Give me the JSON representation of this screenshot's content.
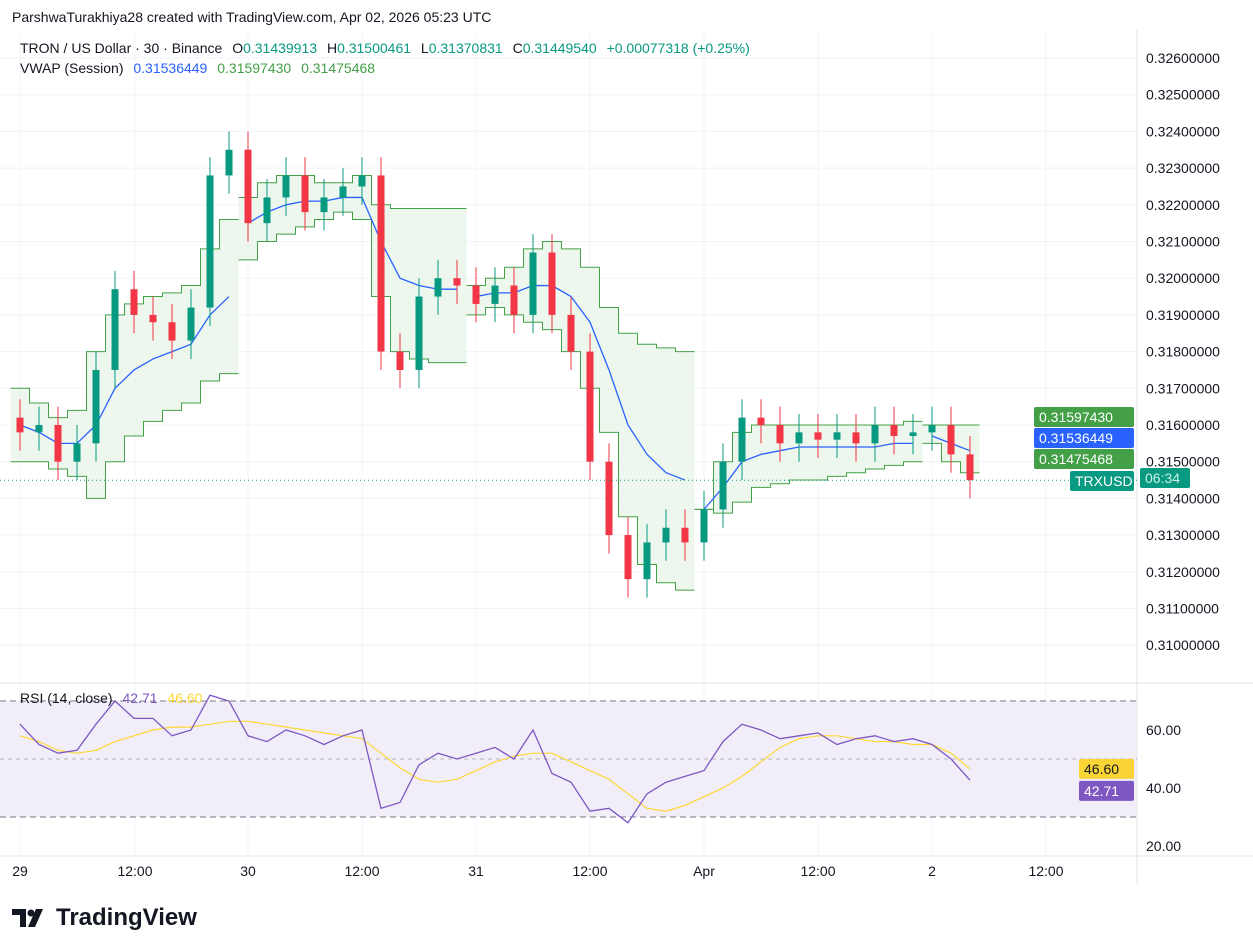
{
  "credit": "ParshwaTurakhiya28 created with TradingView.com, Apr 02, 2026 05:23 UTC",
  "legend": {
    "symbol": "TRON / US Dollar · 30 · Binance",
    "o_label": "O",
    "o": "0.31439913",
    "h_label": "H",
    "h": "0.31500461",
    "l_label": "L",
    "l": "0.31370831",
    "c_label": "C",
    "c": "0.31449540",
    "change": "+0.00077318 (+0.25%)"
  },
  "vwap_legend": {
    "label": "VWAP (Session)",
    "vwap": "0.31536449",
    "upper": "0.31597430",
    "lower": "0.31475468"
  },
  "rsi_legend": {
    "label": "RSI (14, close)",
    "rsi": "42.71",
    "ma": "46.60"
  },
  "badges": {
    "upper": "0.31597430",
    "vwap": "0.31536449",
    "lower": "0.31475468",
    "symbol": "TRXUSD",
    "countdown": "06:34",
    "rsi": "42.71",
    "rsi_ma": "46.60"
  },
  "logo": "TradingView",
  "colors": {
    "up": "#089981",
    "down": "#f23645",
    "vwap": "#2962ff",
    "band": "#43a047",
    "band_fill": "#e8f5e9",
    "rsi": "#7e57c2",
    "rsi_ma": "#fdd835",
    "rsi_bg": "#ede7f6"
  },
  "chart_data": [
    {
      "type": "candlestick",
      "title": "TRON / US Dollar · 30 · Binance",
      "y_ticks": [
        "0.32600000",
        "0.32500000",
        "0.32400000",
        "0.32300000",
        "0.32200000",
        "0.32100000",
        "0.32000000",
        "0.31900000",
        "0.31800000",
        "0.31700000",
        "0.31600000",
        "0.31500000",
        "0.31400000",
        "0.31300000",
        "0.31200000",
        "0.31100000",
        "0.31000000"
      ],
      "ylim": [
        0.3095,
        0.3263
      ],
      "x_ticks": [
        "29",
        "12:00",
        "30",
        "12:00",
        "31",
        "12:00",
        "Apr",
        "12:00",
        "2",
        "12:00"
      ],
      "hours_from_mar29": [
        0,
        2,
        4,
        6,
        8,
        10,
        12,
        14,
        16,
        18,
        20,
        22,
        24,
        26,
        28,
        30,
        32,
        34,
        36,
        38,
        40,
        42,
        44,
        46,
        48,
        50,
        52,
        54,
        56,
        58,
        60,
        62,
        64,
        66,
        68,
        70,
        72,
        74,
        76,
        78,
        80,
        82,
        84,
        86,
        88,
        90,
        92,
        94,
        96,
        98,
        100
      ],
      "close": [
        0.3158,
        0.316,
        0.315,
        0.3155,
        0.3175,
        0.3197,
        0.319,
        0.3188,
        0.3183,
        0.3192,
        0.3228,
        0.3235,
        0.3215,
        0.3222,
        0.3228,
        0.3218,
        0.3222,
        0.3225,
        0.3228,
        0.318,
        0.3175,
        0.3195,
        0.32,
        0.3198,
        0.3193,
        0.3198,
        0.319,
        0.3207,
        0.319,
        0.318,
        0.315,
        0.313,
        0.3118,
        0.3128,
        0.3132,
        0.3128,
        0.3137,
        0.315,
        0.3162,
        0.316,
        0.3155,
        0.3158,
        0.3156,
        0.3158,
        0.3155,
        0.316,
        0.3157,
        0.3158,
        0.316,
        0.3152,
        0.3145
      ],
      "vwap": [
        0.316,
        0.3158,
        0.3155,
        0.3155,
        0.316,
        0.317,
        0.3175,
        0.3178,
        0.318,
        0.3182,
        0.319,
        0.3195,
        0.3215,
        0.3218,
        0.322,
        0.3221,
        0.3221,
        0.3222,
        0.3222,
        0.321,
        0.32,
        0.3198,
        0.3197,
        0.3197,
        0.3195,
        0.3196,
        0.3196,
        0.3198,
        0.3198,
        0.3195,
        0.3188,
        0.3175,
        0.316,
        0.3152,
        0.3147,
        0.3145,
        0.3137,
        0.3143,
        0.315,
        0.3152,
        0.3153,
        0.3154,
        0.3154,
        0.3154,
        0.3154,
        0.3154,
        0.3155,
        0.3155,
        0.3157,
        0.3155,
        0.3153
      ],
      "vwap_upper": [
        0.317,
        0.3166,
        0.3162,
        0.3164,
        0.318,
        0.319,
        0.3193,
        0.3195,
        0.3196,
        0.3198,
        0.3208,
        0.3216,
        0.3222,
        0.3226,
        0.3228,
        0.3228,
        0.3226,
        0.3226,
        0.3228,
        0.322,
        0.3219,
        0.3219,
        0.3219,
        0.3219,
        0.3198,
        0.32,
        0.3203,
        0.3208,
        0.321,
        0.3208,
        0.3203,
        0.3192,
        0.3185,
        0.3182,
        0.3181,
        0.318,
        0.3137,
        0.315,
        0.3158,
        0.316,
        0.316,
        0.316,
        0.316,
        0.316,
        0.316,
        0.316,
        0.316,
        0.3161,
        0.316,
        0.316,
        0.316
      ],
      "vwap_lower": [
        0.315,
        0.315,
        0.3148,
        0.3146,
        0.314,
        0.315,
        0.3157,
        0.3161,
        0.3164,
        0.3166,
        0.3172,
        0.3174,
        0.3205,
        0.321,
        0.3212,
        0.3214,
        0.3216,
        0.3218,
        0.3216,
        0.3195,
        0.318,
        0.3178,
        0.3177,
        0.3177,
        0.319,
        0.3192,
        0.319,
        0.3188,
        0.3186,
        0.318,
        0.317,
        0.3158,
        0.3135,
        0.3122,
        0.3117,
        0.3115,
        0.3137,
        0.3136,
        0.3139,
        0.3143,
        0.3144,
        0.3145,
        0.3145,
        0.3146,
        0.3147,
        0.3148,
        0.3149,
        0.315,
        0.3155,
        0.315,
        0.3147
      ],
      "current_price": 0.3144954
    },
    {
      "type": "line",
      "title": "RSI (14, close)",
      "y_ticks": [
        "60.00",
        "40.00",
        "20.00"
      ],
      "ylim": [
        15,
        75
      ],
      "bands": [
        30,
        70
      ],
      "rsi": [
        62,
        55,
        52,
        53,
        62,
        70,
        64,
        64,
        58,
        60,
        72,
        70,
        58,
        56,
        60,
        58,
        55,
        58,
        60,
        33,
        35,
        48,
        52,
        50,
        52,
        54,
        50,
        60,
        45,
        42,
        32,
        33,
        28,
        38,
        42,
        44,
        46,
        56,
        62,
        60,
        57,
        58,
        59,
        55,
        57,
        58,
        56,
        57,
        55,
        50,
        42.71
      ],
      "rsi_ma": [
        58,
        56,
        53,
        52,
        53,
        56,
        58,
        60,
        61,
        61,
        62,
        63,
        63,
        62,
        61,
        60,
        59,
        58,
        57,
        52,
        47,
        43,
        42,
        43,
        46,
        49,
        51,
        52,
        52,
        49,
        46,
        43,
        38,
        33,
        32,
        34,
        37,
        40,
        44,
        49,
        54,
        57,
        58,
        58,
        57,
        56,
        56,
        55,
        55,
        52,
        46.6
      ]
    }
  ]
}
